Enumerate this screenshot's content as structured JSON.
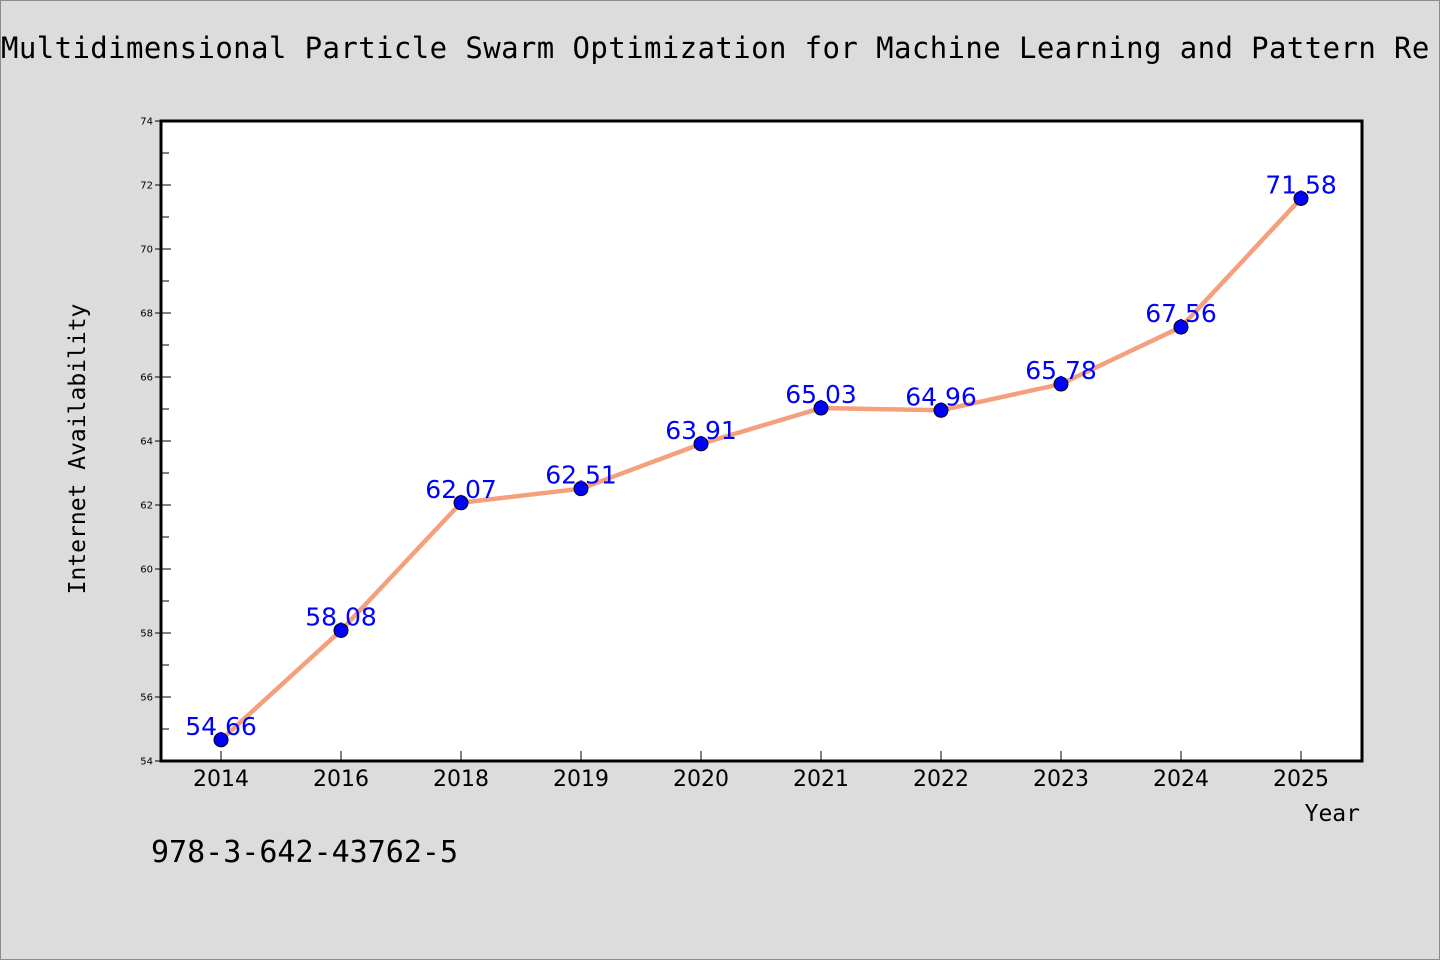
{
  "chart_data": {
    "type": "line",
    "title": "Multidimensional Particle Swarm Optimization for Machine Learning and Pattern Re",
    "xlabel": "Year",
    "ylabel": "Internet Availability",
    "categories": [
      "2014",
      "2016",
      "2018",
      "2019",
      "2020",
      "2021",
      "2022",
      "2023",
      "2024",
      "2025"
    ],
    "series": [
      {
        "values": [
          54.66,
          58.08,
          62.07,
          62.51,
          63.91,
          65.03,
          64.96,
          65.78,
          67.56,
          71.58
        ]
      }
    ],
    "data_labels": [
      "54.66",
      "58.08",
      "62.07",
      "62.51",
      "63.91",
      "65.03",
      "64.96",
      "65.78",
      "67.56",
      "71.58"
    ],
    "ylim": [
      54,
      74
    ],
    "yticks": [
      54,
      56,
      58,
      60,
      62,
      64,
      66,
      68,
      70,
      72,
      74
    ],
    "grid": false,
    "colors": {
      "line": "#f4a07c",
      "marker": "#0000ff",
      "label": "#0000ff",
      "background": "#dcdcdc",
      "plot_background": "#ffffff"
    }
  },
  "footer": {
    "isbn": "978-3-642-43762-5"
  }
}
